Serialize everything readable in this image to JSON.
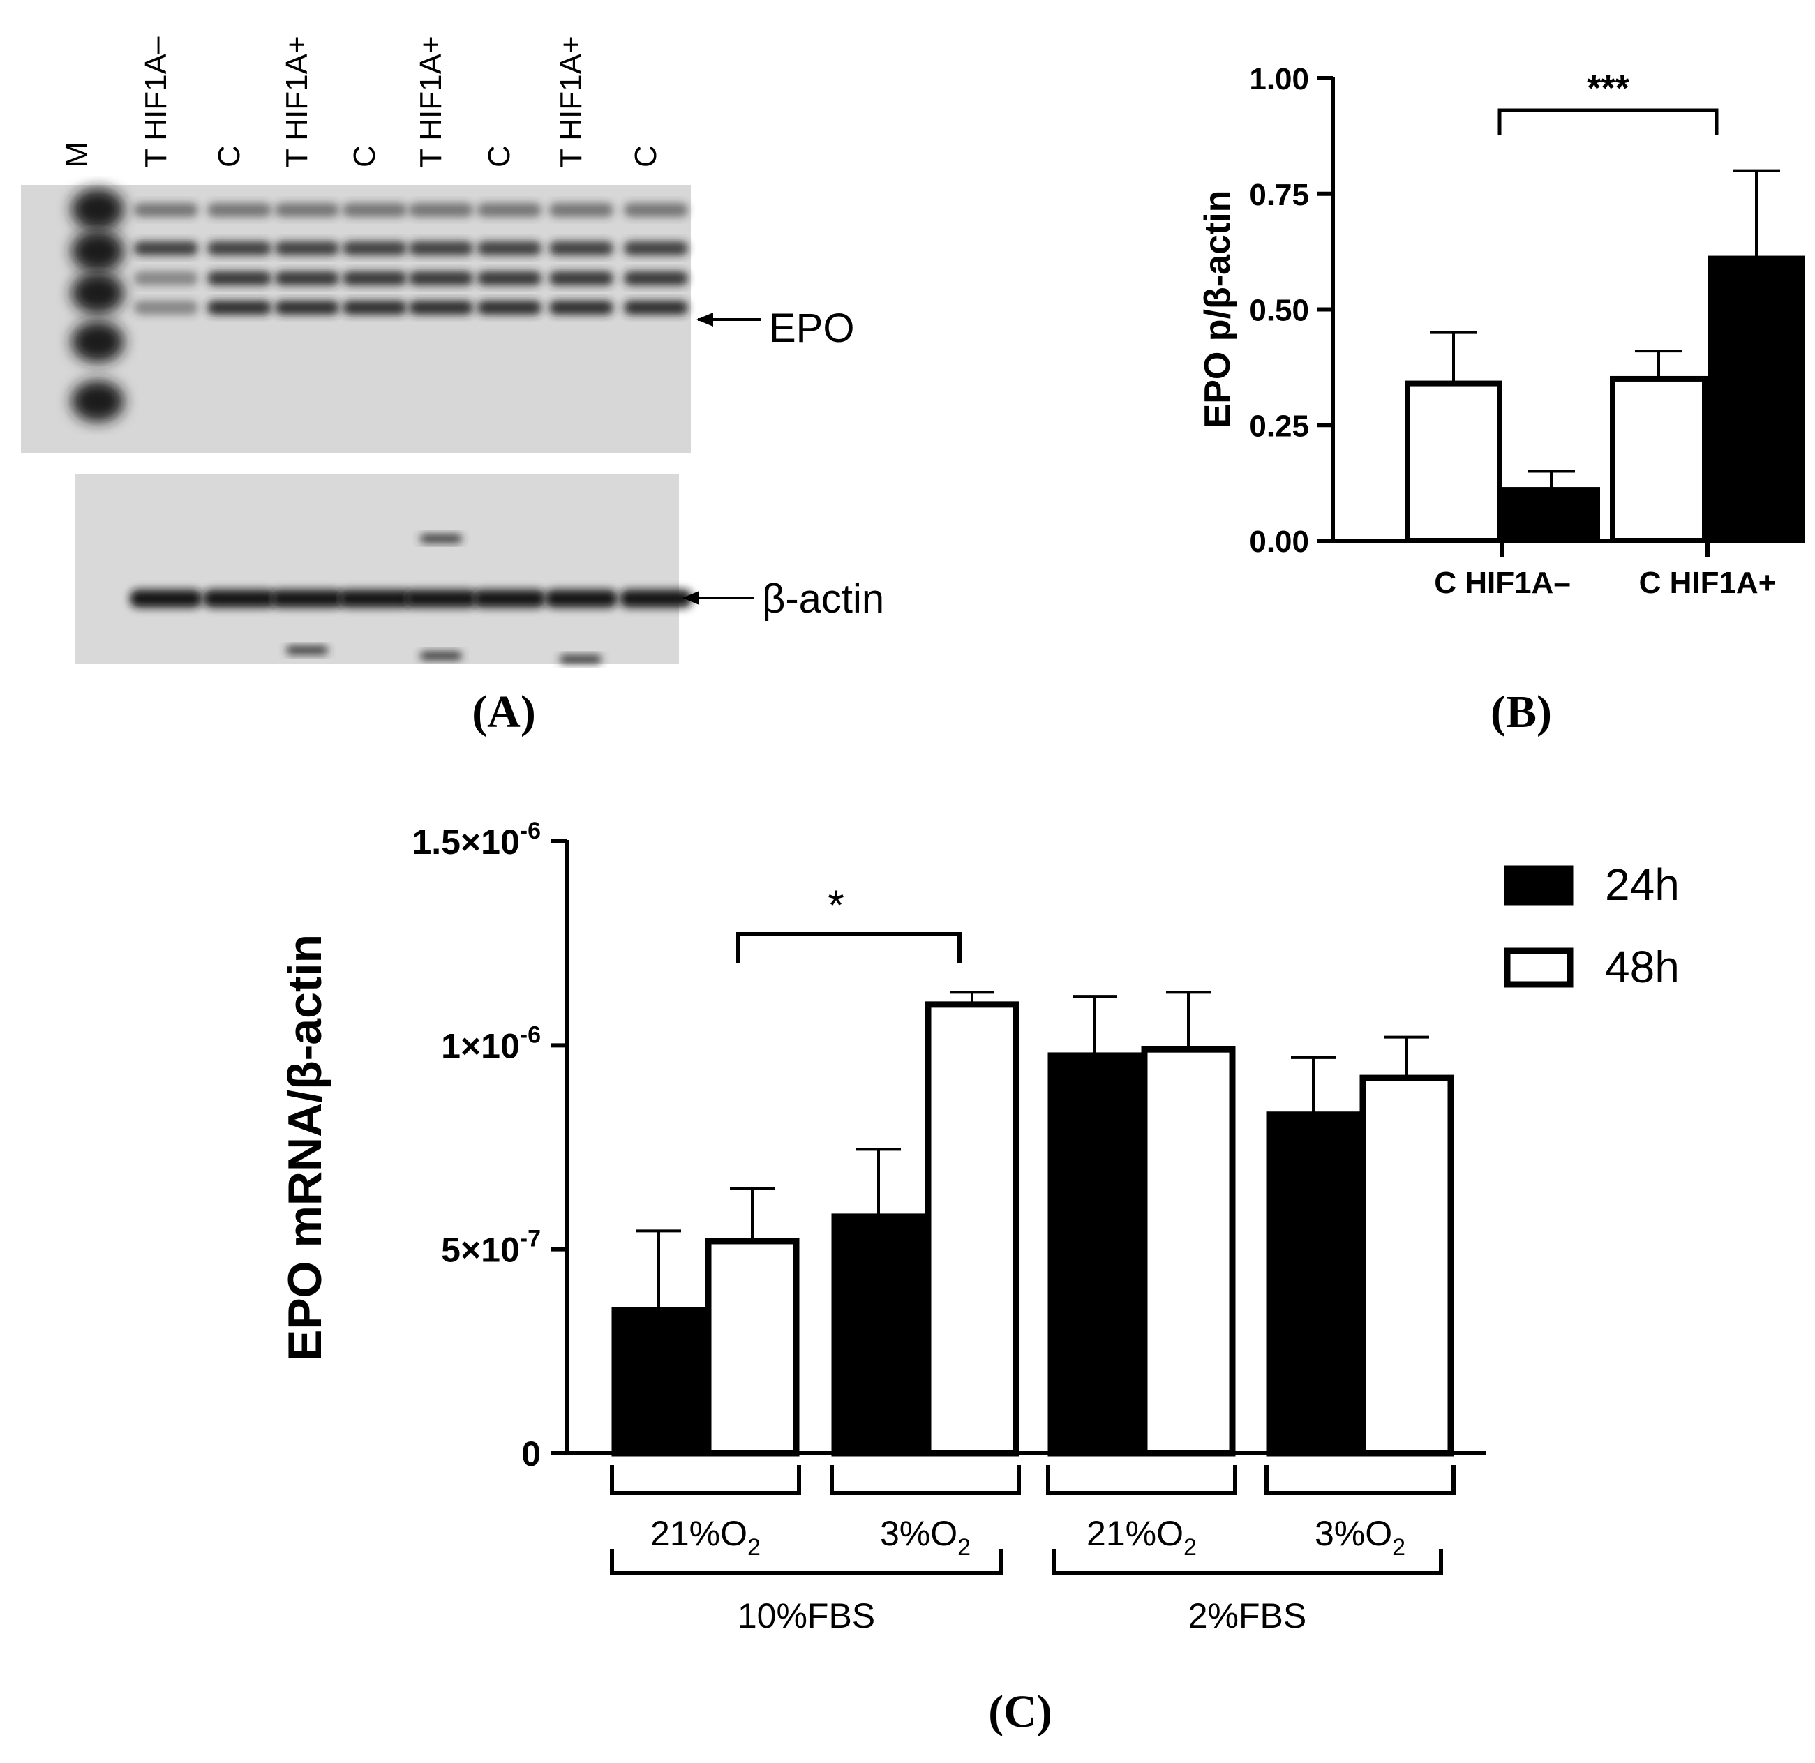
{
  "panel_labels": {
    "a": "(A)",
    "b": "(B)",
    "c": "(C)"
  },
  "blot": {
    "lane_labels": [
      "M",
      "T HIF1A–",
      "C",
      "T HIF1A+",
      "C",
      "T HIF1A+",
      "C",
      "T HIF1A+",
      "C"
    ],
    "epo_label": "EPO",
    "actin_label": "β-actin"
  },
  "chart_data": [
    {
      "type": "bar",
      "panel": "B",
      "ylabel": "EPO p/β-actin",
      "ylim": [
        0,
        1.0
      ],
      "yticks": [
        0.0,
        0.25,
        0.5,
        0.75,
        1.0
      ],
      "ytick_labels": [
        "0.00",
        "0.25",
        "0.50",
        "0.75",
        "1.00"
      ],
      "groups": [
        {
          "label": "C HIF1A–",
          "bars": [
            {
              "fill": "white",
              "value": 0.34,
              "err": 0.11
            },
            {
              "fill": "black",
              "value": 0.11,
              "err": 0.04
            }
          ]
        },
        {
          "label": "C HIF1A+",
          "bars": [
            {
              "fill": "white",
              "value": 0.35,
              "err": 0.06
            },
            {
              "fill": "black",
              "value": 0.61,
              "err": 0.19
            }
          ]
        }
      ],
      "significance": {
        "label": "***"
      }
    },
    {
      "type": "bar",
      "panel": "C",
      "ylabel": "EPO mRNA/β-actin",
      "ylim": [
        0,
        1.5e-06
      ],
      "yticks": [
        0,
        5e-07,
        1e-06,
        1.5e-06
      ],
      "ytick_labels": [
        {
          "base": "0",
          "exp": ""
        },
        {
          "base": "5×10",
          "exp": "-7"
        },
        {
          "base": "1×10",
          "exp": "-6"
        },
        {
          "base": "1.5×10",
          "exp": "-6"
        }
      ],
      "series": [
        {
          "name": "24h",
          "fill": "black",
          "values": [
            3.5e-07,
            5.8e-07,
            9.75e-07,
            8.3e-07
          ],
          "errors": [
            1.95e-07,
            1.65e-07,
            1.45e-07,
            1.4e-07
          ]
        },
        {
          "name": "48h",
          "fill": "white",
          "values": [
            5.2e-07,
            1.1e-06,
            9.9e-07,
            9.2e-07
          ],
          "errors": [
            1.3e-07,
            3e-08,
            1.4e-07,
            1e-07
          ]
        }
      ],
      "group_labels": [
        {
          "base": "21%O",
          "sub": "2"
        },
        {
          "base": "3%O",
          "sub": "2"
        },
        {
          "base": "21%O",
          "sub": "2"
        },
        {
          "base": "3%O",
          "sub": "2"
        }
      ],
      "super_groups": [
        "10%FBS",
        "2%FBS"
      ],
      "significance": {
        "label": "*"
      }
    }
  ]
}
